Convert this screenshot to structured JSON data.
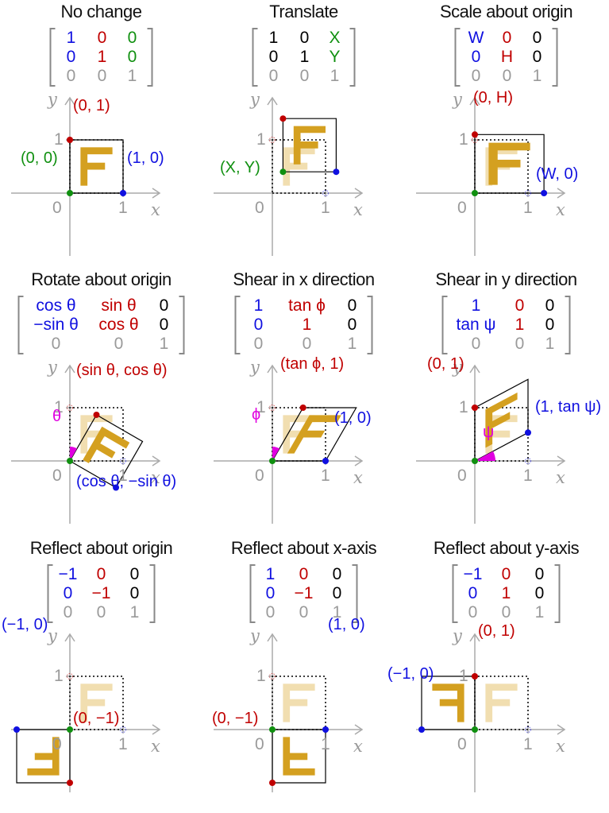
{
  "colors": {
    "blue": "#1010e0",
    "red": "#c00000",
    "green": "#109010",
    "black": "#000000",
    "gray": "#9a9a9a",
    "magenta": "#e000e0",
    "gold": "#d4a020",
    "goldfaint": "#f1deb0"
  },
  "axes": {
    "x_label": "x",
    "y_label": "y",
    "origin": "0",
    "one_x": "1",
    "one_y": "1"
  },
  "panels": [
    {
      "title": "No change",
      "matrix": [
        [
          {
            "t": "1",
            "c": "blue"
          },
          {
            "t": "0",
            "c": "red"
          },
          {
            "t": "0",
            "c": "green"
          }
        ],
        [
          {
            "t": "0",
            "c": "blue"
          },
          {
            "t": "1",
            "c": "red"
          },
          {
            "t": "0",
            "c": "green"
          }
        ],
        [
          {
            "t": "0",
            "c": "gray"
          },
          {
            "t": "0",
            "c": "gray"
          },
          {
            "t": "1",
            "c": "gray"
          }
        ]
      ],
      "labels": [
        {
          "text": "(0, 1)",
          "c": "red"
        },
        {
          "text": "(0, 0)",
          "c": "green"
        },
        {
          "text": "(1, 0)",
          "c": "blue"
        }
      ]
    },
    {
      "title": "Translate",
      "matrix": [
        [
          {
            "t": "1",
            "c": "black"
          },
          {
            "t": "0",
            "c": "black"
          },
          {
            "t": "X",
            "c": "green"
          }
        ],
        [
          {
            "t": "0",
            "c": "black"
          },
          {
            "t": "1",
            "c": "black"
          },
          {
            "t": "Y",
            "c": "green"
          }
        ],
        [
          {
            "t": "0",
            "c": "gray"
          },
          {
            "t": "0",
            "c": "gray"
          },
          {
            "t": "1",
            "c": "gray"
          }
        ]
      ],
      "labels": [
        {
          "text": "(X, Y)",
          "c": "green"
        }
      ]
    },
    {
      "title": "Scale about origin",
      "matrix": [
        [
          {
            "t": "W",
            "c": "blue"
          },
          {
            "t": "0",
            "c": "red"
          },
          {
            "t": "0",
            "c": "black"
          }
        ],
        [
          {
            "t": "0",
            "c": "blue"
          },
          {
            "t": "H",
            "c": "red"
          },
          {
            "t": "0",
            "c": "black"
          }
        ],
        [
          {
            "t": "0",
            "c": "gray"
          },
          {
            "t": "0",
            "c": "gray"
          },
          {
            "t": "1",
            "c": "gray"
          }
        ]
      ],
      "labels": [
        {
          "text": "(0, H)",
          "c": "red"
        },
        {
          "text": "(W, 0)",
          "c": "blue"
        }
      ]
    },
    {
      "title": "Rotate about origin",
      "matrix": [
        [
          {
            "t": "cos θ",
            "c": "blue"
          },
          {
            "t": "sin θ",
            "c": "red"
          },
          {
            "t": "0",
            "c": "black"
          }
        ],
        [
          {
            "t": "−sin θ",
            "c": "blue"
          },
          {
            "t": "cos θ",
            "c": "red"
          },
          {
            "t": "0",
            "c": "black"
          }
        ],
        [
          {
            "t": "0",
            "c": "gray"
          },
          {
            "t": "0",
            "c": "gray"
          },
          {
            "t": "1",
            "c": "gray"
          }
        ]
      ],
      "labels": [
        {
          "text": "(sin θ, cos θ)",
          "c": "red"
        },
        {
          "text": "θ",
          "c": "magenta"
        },
        {
          "text": "(cos θ, −sin θ)",
          "c": "blue"
        }
      ]
    },
    {
      "title": "Shear in x direction",
      "matrix": [
        [
          {
            "t": "1",
            "c": "blue"
          },
          {
            "t": "tan ϕ",
            "c": "red"
          },
          {
            "t": "0",
            "c": "black"
          }
        ],
        [
          {
            "t": "0",
            "c": "blue"
          },
          {
            "t": "1",
            "c": "red"
          },
          {
            "t": "0",
            "c": "black"
          }
        ],
        [
          {
            "t": "0",
            "c": "gray"
          },
          {
            "t": "0",
            "c": "gray"
          },
          {
            "t": "1",
            "c": "gray"
          }
        ]
      ],
      "labels": [
        {
          "text": "(tan ϕ, 1)",
          "c": "red"
        },
        {
          "text": "ϕ",
          "c": "magenta"
        },
        {
          "text": "(1, 0)",
          "c": "blue"
        }
      ]
    },
    {
      "title": "Shear in y direction",
      "matrix": [
        [
          {
            "t": "1",
            "c": "blue"
          },
          {
            "t": "0",
            "c": "red"
          },
          {
            "t": "0",
            "c": "black"
          }
        ],
        [
          {
            "t": "tan ψ",
            "c": "blue"
          },
          {
            "t": "1",
            "c": "red"
          },
          {
            "t": "0",
            "c": "black"
          }
        ],
        [
          {
            "t": "0",
            "c": "gray"
          },
          {
            "t": "0",
            "c": "gray"
          },
          {
            "t": "1",
            "c": "gray"
          }
        ]
      ],
      "labels": [
        {
          "text": "(0, 1)",
          "c": "red"
        },
        {
          "text": "(1, tan ψ)",
          "c": "blue"
        },
        {
          "text": "ψ",
          "c": "magenta"
        }
      ]
    },
    {
      "title": "Reflect about origin",
      "matrix": [
        [
          {
            "t": "−1",
            "c": "blue"
          },
          {
            "t": "0",
            "c": "red"
          },
          {
            "t": "0",
            "c": "black"
          }
        ],
        [
          {
            "t": "0",
            "c": "blue"
          },
          {
            "t": "−1",
            "c": "red"
          },
          {
            "t": "0",
            "c": "black"
          }
        ],
        [
          {
            "t": "0",
            "c": "gray"
          },
          {
            "t": "0",
            "c": "gray"
          },
          {
            "t": "1",
            "c": "gray"
          }
        ]
      ],
      "labels": [
        {
          "text": "(−1, 0)",
          "c": "blue"
        },
        {
          "text": "(0, −1)",
          "c": "red"
        }
      ]
    },
    {
      "title": "Reflect about x-axis",
      "matrix": [
        [
          {
            "t": "1",
            "c": "blue"
          },
          {
            "t": "0",
            "c": "red"
          },
          {
            "t": "0",
            "c": "black"
          }
        ],
        [
          {
            "t": "0",
            "c": "blue"
          },
          {
            "t": "−1",
            "c": "red"
          },
          {
            "t": "0",
            "c": "black"
          }
        ],
        [
          {
            "t": "0",
            "c": "gray"
          },
          {
            "t": "0",
            "c": "gray"
          },
          {
            "t": "1",
            "c": "gray"
          }
        ]
      ],
      "labels": [
        {
          "text": "(1, 0)",
          "c": "blue"
        },
        {
          "text": "(0, −1)",
          "c": "red"
        }
      ]
    },
    {
      "title": "Reflect about y-axis",
      "matrix": [
        [
          {
            "t": "−1",
            "c": "blue"
          },
          {
            "t": "0",
            "c": "red"
          },
          {
            "t": "0",
            "c": "black"
          }
        ],
        [
          {
            "t": "0",
            "c": "blue"
          },
          {
            "t": "1",
            "c": "red"
          },
          {
            "t": "0",
            "c": "black"
          }
        ],
        [
          {
            "t": "0",
            "c": "gray"
          },
          {
            "t": "0",
            "c": "gray"
          },
          {
            "t": "1",
            "c": "gray"
          }
        ]
      ],
      "labels": [
        {
          "text": "(0, 1)",
          "c": "red"
        },
        {
          "text": "(−1, 0)",
          "c": "blue"
        }
      ]
    }
  ]
}
